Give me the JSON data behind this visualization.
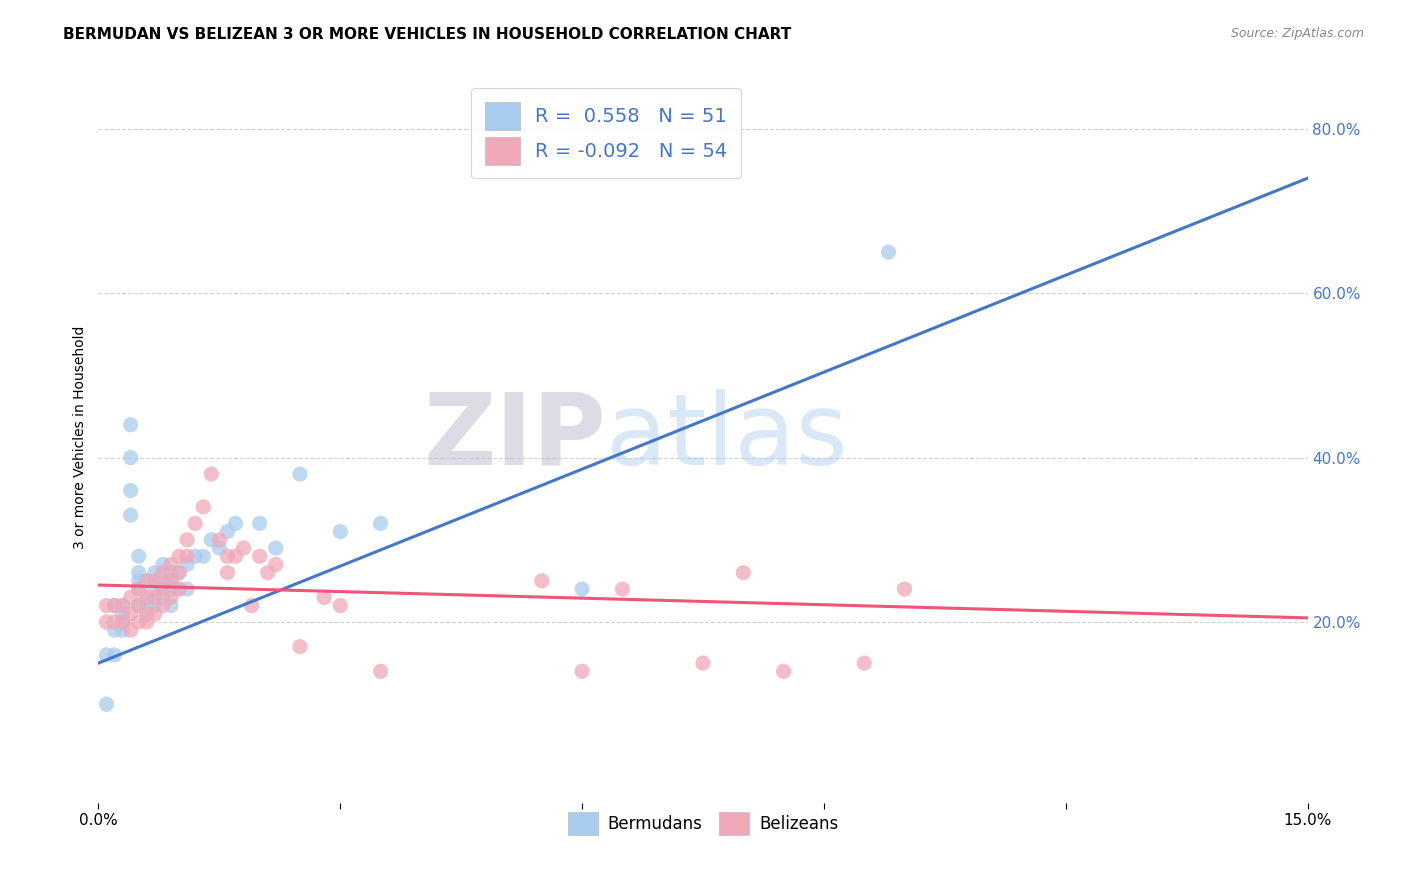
{
  "title": "BERMUDAN VS BELIZEAN 3 OR MORE VEHICLES IN HOUSEHOLD CORRELATION CHART",
  "source": "Source: ZipAtlas.com",
  "ylabel": "3 or more Vehicles in Household",
  "xlim": [
    0.0,
    0.15
  ],
  "ylim": [
    -0.02,
    0.87
  ],
  "xticks": [
    0.0,
    0.03,
    0.06,
    0.09,
    0.12,
    0.15
  ],
  "xtick_labels": [
    "0.0%",
    "",
    "",
    "",
    "",
    "15.0%"
  ],
  "yticks_right": [
    0.2,
    0.4,
    0.6,
    0.8
  ],
  "ytick_labels_right": [
    "20.0%",
    "40.0%",
    "60.0%",
    "80.0%"
  ],
  "blue_color": "#A8CCEE",
  "pink_color": "#F0A8B8",
  "blue_line_color": "#4477CC",
  "pink_line_color": "#EE5577",
  "watermark_zip": "ZIP",
  "watermark_atlas": "atlas",
  "blue_scatter_x": [
    0.001,
    0.001,
    0.002,
    0.002,
    0.002,
    0.003,
    0.003,
    0.003,
    0.003,
    0.004,
    0.004,
    0.004,
    0.004,
    0.005,
    0.005,
    0.005,
    0.005,
    0.005,
    0.006,
    0.006,
    0.006,
    0.006,
    0.007,
    0.007,
    0.007,
    0.007,
    0.008,
    0.008,
    0.008,
    0.008,
    0.009,
    0.009,
    0.009,
    0.009,
    0.01,
    0.01,
    0.011,
    0.011,
    0.012,
    0.013,
    0.014,
    0.015,
    0.016,
    0.017,
    0.02,
    0.022,
    0.025,
    0.03,
    0.035,
    0.06,
    0.098
  ],
  "blue_scatter_y": [
    0.16,
    0.1,
    0.22,
    0.19,
    0.16,
    0.22,
    0.21,
    0.2,
    0.19,
    0.4,
    0.44,
    0.36,
    0.33,
    0.28,
    0.26,
    0.25,
    0.24,
    0.22,
    0.25,
    0.23,
    0.22,
    0.21,
    0.26,
    0.25,
    0.24,
    0.22,
    0.27,
    0.25,
    0.24,
    0.23,
    0.26,
    0.25,
    0.24,
    0.22,
    0.26,
    0.24,
    0.27,
    0.24,
    0.28,
    0.28,
    0.3,
    0.29,
    0.31,
    0.32,
    0.32,
    0.29,
    0.38,
    0.31,
    0.32,
    0.24,
    0.65
  ],
  "pink_scatter_x": [
    0.001,
    0.001,
    0.002,
    0.002,
    0.003,
    0.003,
    0.004,
    0.004,
    0.004,
    0.005,
    0.005,
    0.005,
    0.006,
    0.006,
    0.006,
    0.006,
    0.007,
    0.007,
    0.007,
    0.008,
    0.008,
    0.008,
    0.009,
    0.009,
    0.009,
    0.01,
    0.01,
    0.01,
    0.011,
    0.011,
    0.012,
    0.013,
    0.014,
    0.015,
    0.016,
    0.016,
    0.017,
    0.018,
    0.019,
    0.02,
    0.021,
    0.022,
    0.025,
    0.028,
    0.03,
    0.035,
    0.055,
    0.06,
    0.065,
    0.075,
    0.08,
    0.085,
    0.095,
    0.1
  ],
  "pink_scatter_y": [
    0.22,
    0.2,
    0.22,
    0.2,
    0.22,
    0.2,
    0.23,
    0.21,
    0.19,
    0.24,
    0.22,
    0.2,
    0.25,
    0.23,
    0.21,
    0.2,
    0.25,
    0.23,
    0.21,
    0.26,
    0.24,
    0.22,
    0.27,
    0.25,
    0.23,
    0.28,
    0.26,
    0.24,
    0.3,
    0.28,
    0.32,
    0.34,
    0.38,
    0.3,
    0.28,
    0.26,
    0.28,
    0.29,
    0.22,
    0.28,
    0.26,
    0.27,
    0.17,
    0.23,
    0.22,
    0.14,
    0.25,
    0.14,
    0.24,
    0.15,
    0.26,
    0.14,
    0.15,
    0.24
  ],
  "blue_line_x": [
    0.0,
    0.15
  ],
  "blue_line_y": [
    0.15,
    0.74
  ],
  "pink_line_x": [
    0.0,
    0.15
  ],
  "pink_line_y": [
    0.245,
    0.205
  ],
  "grid_color": "#CCCCCC",
  "background_color": "#FFFFFF",
  "title_fontsize": 11,
  "axis_label_fontsize": 10,
  "tick_fontsize": 11,
  "legend_fontsize": 14
}
